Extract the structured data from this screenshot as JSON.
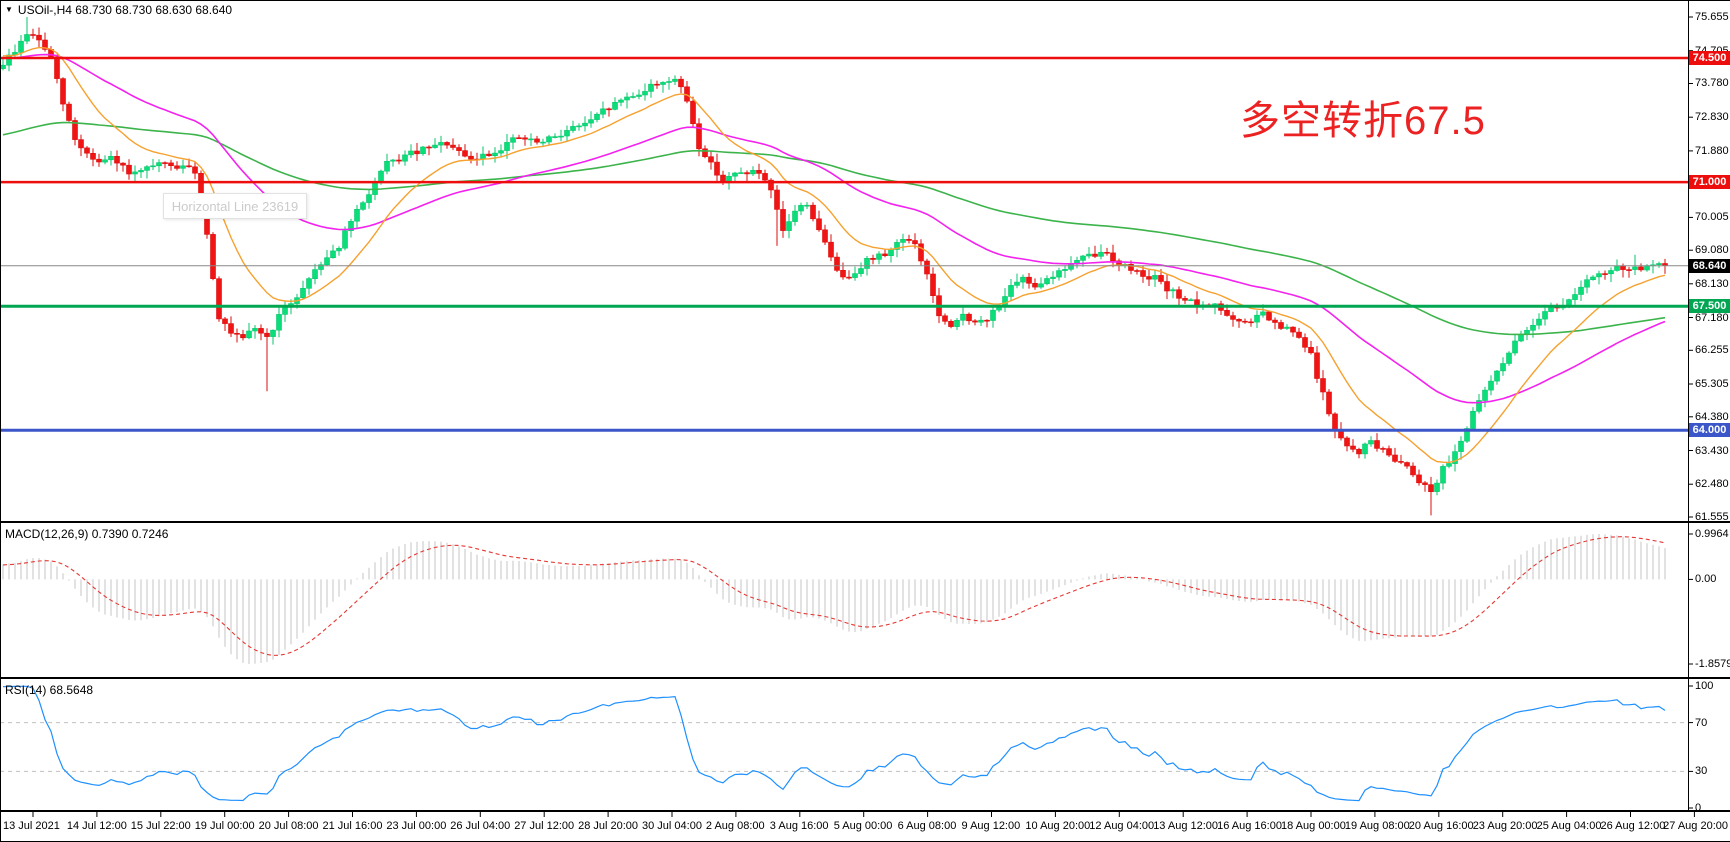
{
  "header": {
    "dropdown_icon": "▼",
    "symbol_info": "USOil-,H4  68.730 68.730 68.630 68.640"
  },
  "annotation": {
    "text": "多空转折67.5",
    "color": "#ec2222"
  },
  "tooltip": {
    "text": "Horizontal Line 23619"
  },
  "main_chart": {
    "price_ticks": [
      "75.655",
      "74.705",
      "73.780",
      "72.830",
      "71.880",
      "70.930",
      "70.005",
      "69.080",
      "68.130",
      "67.180",
      "66.255",
      "65.305",
      "64.380",
      "63.430",
      "62.480",
      "61.555"
    ],
    "hlines": [
      {
        "price": 74.5,
        "label": "74.500",
        "color": "#ee0d0d",
        "thickness": 2.5
      },
      {
        "price": 71.0,
        "label": "71.000",
        "color": "#ee0d0d",
        "thickness": 2.5
      },
      {
        "price": 67.5,
        "label": "67.500",
        "color": "#00a651",
        "thickness": 3
      },
      {
        "price": 64.0,
        "label": "64.000",
        "color": "#3a56c8",
        "thickness": 3
      }
    ],
    "current_price": {
      "price": 68.64,
      "label": "68.640",
      "line_color": "#888888",
      "label_bg": "#000000"
    }
  },
  "macd": {
    "label": "MACD(12,26,9) 0.7390 0.7246",
    "ticks": [
      "0.9964",
      "0.00",
      "-1.8579"
    ],
    "max": 0.9964,
    "min": -1.8579
  },
  "rsi": {
    "label": "RSI(14) 68.5648",
    "ticks": [
      "100",
      "70",
      "30",
      "0"
    ],
    "levels": [
      70,
      30
    ]
  },
  "time_axis": {
    "labels": [
      "13 Jul 2021",
      "14 Jul 12:00",
      "15 Jul 22:00",
      "19 Jul 00:00",
      "20 Jul 08:00",
      "21 Jul 16:00",
      "23 Jul 00:00",
      "26 Jul 04:00",
      "27 Jul 12:00",
      "28 Jul 20:00",
      "30 Jul 04:00",
      "2 Aug 08:00",
      "3 Aug 16:00",
      "5 Aug 00:00",
      "6 Aug 08:00",
      "9 Aug 12:00",
      "10 Aug 20:00",
      "12 Aug 04:00",
      "13 Aug 12:00",
      "16 Aug 16:00",
      "18 Aug 00:00",
      "19 Aug 08:00",
      "20 Aug 16:00",
      "23 Aug 20:00",
      "25 Aug 04:00",
      "26 Aug 12:00",
      "27 Aug 20:00"
    ]
  },
  "chart_data": {
    "type": "candlestick",
    "symbol": "USOil-",
    "timeframe": "H4",
    "ohlc_quote": {
      "open": 68.73,
      "high": 68.73,
      "low": 68.63,
      "close": 68.64
    },
    "num_candles": 278,
    "price_axis_range": [
      61.555,
      75.655
    ],
    "close_anchors": [
      [
        0,
        74.35
      ],
      [
        2,
        74.7
      ],
      [
        4,
        75.2
      ],
      [
        6,
        75.0
      ],
      [
        8,
        74.5
      ],
      [
        10,
        73.2
      ],
      [
        12,
        72.2
      ],
      [
        14,
        71.8
      ],
      [
        16,
        71.55
      ],
      [
        18,
        71.65
      ],
      [
        20,
        71.4
      ],
      [
        22,
        71.2
      ],
      [
        24,
        71.35
      ],
      [
        26,
        71.5
      ],
      [
        28,
        71.45
      ],
      [
        30,
        71.4
      ],
      [
        32,
        71.3
      ],
      [
        34,
        69.5
      ],
      [
        36,
        67.2
      ],
      [
        38,
        66.7
      ],
      [
        40,
        66.55
      ],
      [
        42,
        66.9
      ],
      [
        44,
        66.6
      ],
      [
        46,
        67.2
      ],
      [
        48,
        67.6
      ],
      [
        50,
        68.0
      ],
      [
        52,
        68.55
      ],
      [
        54,
        68.9
      ],
      [
        56,
        69.2
      ],
      [
        58,
        69.9
      ],
      [
        60,
        70.4
      ],
      [
        62,
        71.0
      ],
      [
        64,
        71.5
      ],
      [
        66,
        71.65
      ],
      [
        68,
        71.8
      ],
      [
        70,
        71.9
      ],
      [
        72,
        72.0
      ],
      [
        74,
        72.1
      ],
      [
        76,
        71.8
      ],
      [
        78,
        71.6
      ],
      [
        80,
        71.75
      ],
      [
        82,
        71.85
      ],
      [
        84,
        72.1
      ],
      [
        86,
        72.25
      ],
      [
        88,
        72.15
      ],
      [
        90,
        72.1
      ],
      [
        92,
        72.3
      ],
      [
        94,
        72.45
      ],
      [
        96,
        72.6
      ],
      [
        98,
        72.7
      ],
      [
        100,
        73.0
      ],
      [
        102,
        73.2
      ],
      [
        104,
        73.4
      ],
      [
        106,
        73.5
      ],
      [
        108,
        73.7
      ],
      [
        110,
        73.85
      ],
      [
        112,
        73.9
      ],
      [
        114,
        73.3
      ],
      [
        116,
        72.0
      ],
      [
        118,
        71.5
      ],
      [
        120,
        71.05
      ],
      [
        122,
        71.2
      ],
      [
        124,
        71.3
      ],
      [
        126,
        71.25
      ],
      [
        128,
        70.7
      ],
      [
        130,
        69.6
      ],
      [
        132,
        70.2
      ],
      [
        134,
        70.4
      ],
      [
        136,
        69.6
      ],
      [
        138,
        68.9
      ],
      [
        140,
        68.25
      ],
      [
        142,
        68.5
      ],
      [
        144,
        68.8
      ],
      [
        146,
        68.9
      ],
      [
        148,
        69.1
      ],
      [
        150,
        69.45
      ],
      [
        152,
        69.2
      ],
      [
        154,
        68.4
      ],
      [
        156,
        67.2
      ],
      [
        158,
        66.85
      ],
      [
        160,
        67.3
      ],
      [
        162,
        67.0
      ],
      [
        164,
        67.1
      ],
      [
        166,
        67.6
      ],
      [
        168,
        68.0
      ],
      [
        170,
        68.25
      ],
      [
        172,
        68.1
      ],
      [
        174,
        68.3
      ],
      [
        176,
        68.45
      ],
      [
        178,
        68.7
      ],
      [
        180,
        68.85
      ],
      [
        182,
        68.95
      ],
      [
        184,
        69.0
      ],
      [
        186,
        68.7
      ],
      [
        188,
        68.55
      ],
      [
        190,
        68.4
      ],
      [
        192,
        68.3
      ],
      [
        194,
        67.95
      ],
      [
        196,
        67.8
      ],
      [
        198,
        67.6
      ],
      [
        200,
        67.45
      ],
      [
        202,
        67.6
      ],
      [
        204,
        67.2
      ],
      [
        206,
        67.0
      ],
      [
        208,
        67.1
      ],
      [
        210,
        67.3
      ],
      [
        212,
        66.95
      ],
      [
        214,
        66.85
      ],
      [
        216,
        66.6
      ],
      [
        218,
        66.1
      ],
      [
        220,
        65.0
      ],
      [
        222,
        64.0
      ],
      [
        224,
        63.5
      ],
      [
        226,
        63.4
      ],
      [
        228,
        63.7
      ],
      [
        230,
        63.4
      ],
      [
        232,
        63.2
      ],
      [
        234,
        63.0
      ],
      [
        236,
        62.6
      ],
      [
        238,
        62.3
      ],
      [
        240,
        62.9
      ],
      [
        242,
        63.4
      ],
      [
        244,
        64.1
      ],
      [
        246,
        64.8
      ],
      [
        248,
        65.4
      ],
      [
        250,
        65.95
      ],
      [
        252,
        66.45
      ],
      [
        254,
        66.85
      ],
      [
        256,
        67.2
      ],
      [
        258,
        67.55
      ],
      [
        260,
        67.45
      ],
      [
        262,
        67.9
      ],
      [
        264,
        68.2
      ],
      [
        266,
        68.35
      ],
      [
        268,
        68.5
      ],
      [
        270,
        68.6
      ],
      [
        272,
        68.55
      ],
      [
        274,
        68.6
      ],
      [
        277,
        68.64
      ]
    ],
    "wick_events": [
      {
        "i": 4,
        "high": 75.655
      },
      {
        "i": 44,
        "low": 65.1
      },
      {
        "i": 129,
        "low": 69.2
      },
      {
        "i": 238,
        "low": 61.6
      },
      {
        "i": 272,
        "high": 68.95
      }
    ],
    "indicators": {
      "macd": {
        "fast": 12,
        "slow": 26,
        "signal": 9,
        "values": [
          0.739,
          0.7246
        ]
      },
      "rsi": {
        "period": 14,
        "value": 68.5648
      },
      "moving_averages": [
        {
          "name": "fast",
          "period": 14,
          "color": "#f6a12f"
        },
        {
          "name": "mid",
          "period": 48,
          "color": "#f322ee"
        },
        {
          "name": "slow",
          "period": 120,
          "color": "#3cb44b"
        }
      ]
    },
    "colors": {
      "bull": "#0ade7b",
      "bull_border": "#09c66d",
      "bear": "#f01414",
      "bear_border": "#dc0e0e",
      "macd_hist": "#c6c6c6",
      "macd_signal": "#e53935",
      "rsi_line": "#1e90ff",
      "level_dash": "#c0c0c0",
      "axis": "#000000"
    }
  }
}
